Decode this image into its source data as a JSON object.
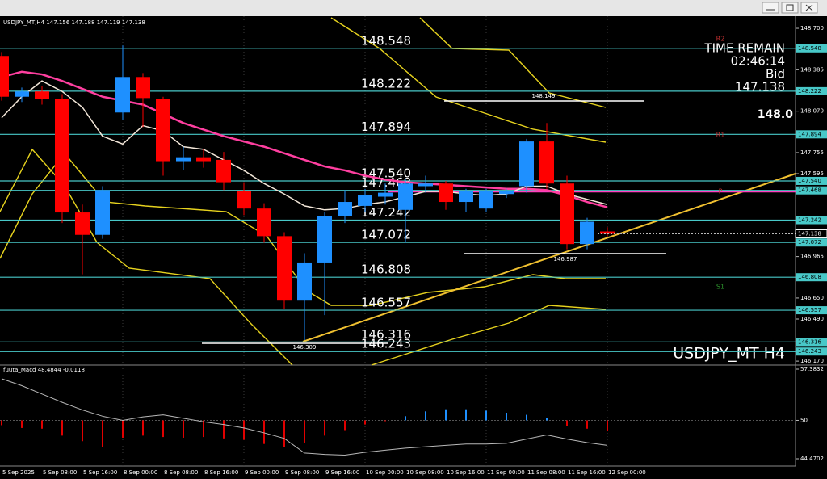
{
  "chart_data": [
    {
      "type": "candlestick",
      "title": "USDJPY_MT,H4 147.156 147.188 147.119 147.138",
      "categories": [
        "5 Sep 2025",
        null,
        "5 Sep 08:00",
        null,
        "5 Sep 16:00",
        null,
        "8 Sep 00:00",
        null,
        "8 Sep 08:00",
        null,
        "8 Sep 16:00",
        null,
        "9 Sep 00:00",
        null,
        "9 Sep 08:00",
        null,
        "9 Sep 16:00",
        null,
        "10 Sep 00:00",
        null,
        "10 Sep 08:00",
        null,
        "10 Sep 16:00",
        null,
        "11 Sep 00:00",
        null,
        "11 Sep 08:00",
        null,
        "11 Sep 16:00",
        null,
        "12 Sep 00:00"
      ],
      "open": [
        148.49,
        148.18,
        148.22,
        148.16,
        147.3,
        147.13,
        148.06,
        148.33,
        148.16,
        147.69,
        147.72,
        147.7,
        147.46,
        147.33,
        147.12,
        146.63,
        146.92,
        147.27,
        147.35,
        147.42,
        147.32,
        147.5,
        147.52,
        147.38,
        147.33,
        147.44,
        147.5,
        147.84,
        147.52,
        147.06,
        147.156
      ],
      "high": [
        148.52,
        148.25,
        148.26,
        148.2,
        147.36,
        147.5,
        148.57,
        148.36,
        148.18,
        147.8,
        147.78,
        147.76,
        147.53,
        147.37,
        147.15,
        146.99,
        147.3,
        147.47,
        147.48,
        147.52,
        147.56,
        147.58,
        147.54,
        147.48,
        147.48,
        147.48,
        147.86,
        147.98,
        147.58,
        147.26,
        147.188
      ],
      "low": [
        148.15,
        148.14,
        148.12,
        147.22,
        146.83,
        147.1,
        148.0,
        147.95,
        147.58,
        147.62,
        147.64,
        147.47,
        147.28,
        147.07,
        146.57,
        146.33,
        146.52,
        147.22,
        147.3,
        147.36,
        147.07,
        147.45,
        147.32,
        147.3,
        147.3,
        147.41,
        147.45,
        147.48,
        147.02,
        147.02,
        147.119
      ],
      "close": [
        148.18,
        148.22,
        148.16,
        147.3,
        147.13,
        147.47,
        148.33,
        148.17,
        147.69,
        147.72,
        147.69,
        147.53,
        147.33,
        147.12,
        146.63,
        146.92,
        147.27,
        147.38,
        147.43,
        147.45,
        147.52,
        147.52,
        147.38,
        147.46,
        147.46,
        147.46,
        147.84,
        147.52,
        147.06,
        147.23,
        147.138
      ],
      "up_color": "#1e90ff",
      "down_color": "#ff0000",
      "lines": [
        {
          "color": "#ff3fa0",
          "values": [
            148.33,
            148.37,
            148.35,
            148.3,
            148.24,
            148.18,
            148.15,
            148.12,
            148.05,
            147.98,
            147.93,
            147.88,
            147.84,
            147.8,
            147.75,
            147.7,
            147.65,
            147.62,
            147.58,
            147.55,
            147.53,
            147.52,
            147.51,
            147.5,
            147.49,
            147.48,
            147.48,
            147.47,
            147.43,
            147.38,
            147.34
          ]
        },
        {
          "color": "#f2e6d8",
          "values": [
            148.02,
            148.18,
            148.3,
            148.22,
            148.1,
            147.88,
            147.82,
            147.96,
            147.92,
            147.8,
            147.78,
            147.7,
            147.62,
            147.52,
            147.44,
            147.35,
            147.32,
            147.33,
            147.36,
            147.38,
            147.42,
            147.46,
            147.46,
            147.44,
            147.43,
            147.44,
            147.5,
            147.5,
            147.44,
            147.4,
            147.36
          ]
        }
      ],
      "ylim": [
        146.14,
        148.78
      ],
      "yticks": [
        {
          "value": 148.7,
          "label": "148.700"
        },
        148.385,
        {
          "value": 148.07,
          "label": "148.070"
        },
        147.755,
        147.595,
        146.965,
        {
          "value": 146.65,
          "label": "146.650"
        },
        {
          "value": 146.49,
          "label": "146.490"
        },
        {
          "value": 146.17,
          "label": "146.170"
        }
      ],
      "levels": [
        148.548,
        148.222,
        147.894,
        {
          "value": 147.54,
          "label": "147.540"
        },
        147.468,
        147.242,
        147.072,
        146.808,
        146.557,
        146.316,
        146.243
      ],
      "level_color": "#48c8c8",
      "last_price": 147.138,
      "annotations": [
        "148.149",
        "146.987",
        "146.309"
      ],
      "pivot_labels": [
        "R2",
        "R1",
        "P",
        "S1"
      ],
      "big_label": "148.0",
      "info": [
        "TIME REMAIN",
        "02:46:14",
        "Bid",
        "147.138"
      ],
      "watermark": "USDJPY_MT H4"
    },
    {
      "type": "bar",
      "title": "fuuta_Macd 48.4844 -0.0118",
      "values": [
        49.3,
        48.9,
        48.8,
        47.8,
        47.0,
        46.2,
        47.5,
        47.8,
        47.6,
        47.5,
        47.6,
        47.4,
        47.2,
        46.6,
        46.1,
        46.8,
        47.8,
        48.6,
        49.4,
        49.9,
        50.6,
        51.3,
        51.6,
        51.6,
        51.4,
        51.1,
        50.8,
        50.3,
        49.2,
        48.8,
        48.4844
      ],
      "baseline": 50,
      "up_color": "#1e90ff",
      "down_color": "#e00000",
      "line": {
        "color": "#b8b8b8",
        "values": [
          56.0,
          55.0,
          53.8,
          52.6,
          51.5,
          50.6,
          50.0,
          50.5,
          50.8,
          50.3,
          49.8,
          49.4,
          48.9,
          48.2,
          47.4,
          45.3,
          45.1,
          45.0,
          45.4,
          45.7,
          46.0,
          46.2,
          46.4,
          46.6,
          46.6,
          46.7,
          47.3,
          47.9,
          47.3,
          46.8,
          46.4
        ]
      },
      "ylim": [
        44.4702,
        57.3832
      ],
      "yticks": [
        57.3832,
        50,
        44.4702
      ]
    }
  ]
}
